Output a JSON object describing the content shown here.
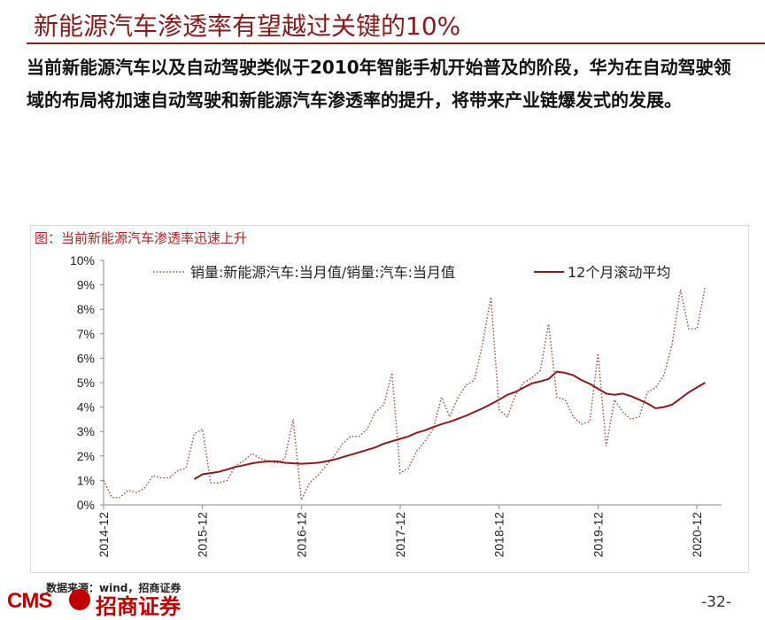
{
  "title": "新能源汽车渗透率有望越过关键的10%",
  "lead": "当前新能源汽车以及自动驾驶类似于2010年智能手机开始普及的阶段，华为在自动驾驶领域的布局将加速自动驾驶和新能源汽车渗透率的提升，将带来产业链爆发式的发展。",
  "figure_caption": "图：当前新能源汽车渗透率迅速上升",
  "source": "数据来源：wind，招商证券",
  "logo": {
    "latin": "CMS",
    "chinese": "招商证券"
  },
  "page_number": "-32-",
  "colors": {
    "title": "#8b1a1a",
    "series_monthly": "#a0463c",
    "series_rolling": "#8b1a1a"
  },
  "chart_data": {
    "type": "line",
    "title": "",
    "xlabel": "",
    "ylabel": "",
    "x_tick_labels": [
      "2014-12",
      "2015-12",
      "2016-12",
      "2017-12",
      "2018-12",
      "2019-12",
      "2020-12"
    ],
    "y_tick_labels": [
      "0%",
      "1%",
      "2%",
      "3%",
      "4%",
      "5%",
      "6%",
      "7%",
      "8%",
      "9%",
      "10%"
    ],
    "ylim": [
      0,
      10
    ],
    "grid": false,
    "legend_position": "top",
    "x_unit": "months since 2014-12",
    "series": [
      {
        "name": "销量:新能源汽车:当月值/销量:汽车:当月值",
        "style": "dotted",
        "x": [
          0,
          1,
          2,
          3,
          4,
          5,
          6,
          7,
          8,
          9,
          10,
          11,
          12,
          13,
          14,
          15,
          16,
          17,
          18,
          19,
          20,
          21,
          22,
          23,
          24,
          25,
          26,
          27,
          28,
          29,
          30,
          31,
          32,
          33,
          34,
          35,
          36,
          37,
          38,
          39,
          40,
          41,
          42,
          43,
          44,
          45,
          46,
          47,
          48,
          49,
          50,
          51,
          52,
          53,
          54,
          55,
          56,
          57,
          58,
          59,
          60,
          61,
          62,
          63,
          64,
          65,
          66,
          67,
          68,
          69,
          70,
          71,
          72,
          73
        ],
        "values": [
          1.0,
          0.3,
          0.3,
          0.6,
          0.5,
          0.7,
          1.2,
          1.1,
          1.1,
          1.4,
          1.5,
          2.9,
          3.1,
          0.9,
          0.9,
          1.0,
          1.6,
          1.8,
          2.1,
          1.9,
          1.8,
          1.7,
          1.9,
          3.5,
          0.2,
          0.9,
          1.2,
          1.6,
          2.0,
          2.5,
          2.8,
          2.8,
          3.1,
          3.8,
          4.1,
          5.4,
          1.3,
          1.5,
          2.2,
          2.6,
          3.1,
          4.4,
          3.6,
          4.4,
          4.9,
          5.1,
          6.6,
          8.5,
          3.9,
          3.6,
          4.5,
          5.0,
          5.2,
          5.5,
          7.4,
          4.4,
          4.3,
          3.6,
          3.3,
          3.4,
          6.2,
          2.4,
          4.3,
          3.8,
          3.5,
          3.6,
          4.6,
          4.8,
          5.3,
          6.6,
          8.8,
          7.2,
          7.2,
          8.9
        ]
      },
      {
        "name": "12个月滚动平均",
        "style": "solid",
        "x": [
          11,
          12,
          13,
          14,
          15,
          16,
          17,
          18,
          19,
          20,
          21,
          22,
          23,
          24,
          25,
          26,
          27,
          28,
          29,
          30,
          31,
          32,
          33,
          34,
          35,
          36,
          37,
          38,
          39,
          40,
          41,
          42,
          43,
          44,
          45,
          46,
          47,
          48,
          49,
          50,
          51,
          52,
          53,
          54,
          55,
          56,
          57,
          58,
          59,
          60,
          61,
          62,
          63,
          64,
          65,
          66,
          67,
          68,
          69,
          70,
          71,
          72,
          73
        ],
        "values": [
          1.05,
          1.25,
          1.3,
          1.35,
          1.45,
          1.55,
          1.62,
          1.7,
          1.75,
          1.78,
          1.78,
          1.72,
          1.7,
          1.68,
          1.7,
          1.72,
          1.78,
          1.85,
          1.95,
          2.05,
          2.15,
          2.25,
          2.35,
          2.5,
          2.6,
          2.7,
          2.8,
          2.95,
          3.05,
          3.18,
          3.3,
          3.4,
          3.52,
          3.65,
          3.8,
          3.95,
          4.12,
          4.3,
          4.5,
          4.62,
          4.8,
          4.97,
          5.05,
          5.15,
          5.45,
          5.4,
          5.3,
          5.1,
          4.95,
          4.75,
          4.55,
          4.5,
          4.55,
          4.45,
          4.3,
          4.15,
          3.95,
          4.0,
          4.1,
          4.35,
          4.6,
          4.8,
          5.0
        ]
      }
    ]
  }
}
